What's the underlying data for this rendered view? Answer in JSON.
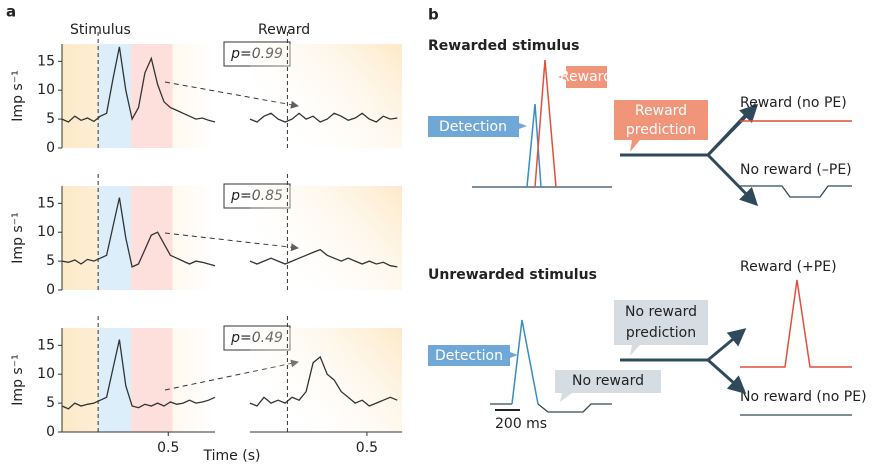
{
  "panel_a": {
    "label": "a"
  },
  "chart_data": [
    {
      "type": "line",
      "title": "Stimulus",
      "ylabel": "Imp s⁻¹",
      "annotation": "p=0.99",
      "event_x": 0.17,
      "regions": [
        {
          "start": 0.17,
          "end": 0.325,
          "color": "#dceefa"
        },
        {
          "start": 0.325,
          "end": 0.52,
          "color": "#fde0dc"
        }
      ],
      "x": [
        0,
        0.03,
        0.06,
        0.09,
        0.12,
        0.15,
        0.18,
        0.21,
        0.24,
        0.27,
        0.3,
        0.33,
        0.36,
        0.39,
        0.42,
        0.45,
        0.48,
        0.51,
        0.54,
        0.57,
        0.6,
        0.63,
        0.66,
        0.69,
        0.72
      ],
      "values": [
        5,
        4.5,
        5.5,
        4.8,
        5.2,
        4.6,
        5.5,
        6,
        12,
        17.5,
        10,
        5,
        7,
        13,
        15.5,
        11,
        8,
        7,
        6.5,
        6,
        5.5,
        5,
        5.2,
        4.8,
        4.5
      ],
      "color": "#333333",
      "xlim": [
        0,
        0.72
      ],
      "ylim": [
        0,
        18
      ],
      "yticks": [
        0,
        5,
        10,
        15
      ]
    },
    {
      "type": "line",
      "title": "Reward",
      "event_x": 0.16,
      "x": [
        0,
        0.03,
        0.06,
        0.09,
        0.12,
        0.15,
        0.18,
        0.21,
        0.24,
        0.27,
        0.3,
        0.33,
        0.36,
        0.39,
        0.42,
        0.45,
        0.48,
        0.51,
        0.54,
        0.57,
        0.6,
        0.63
      ],
      "values": [
        5,
        4.5,
        5.5,
        6,
        5,
        4.5,
        5,
        6,
        5,
        5.5,
        4.5,
        5,
        6,
        5.5,
        4.8,
        5.2,
        6,
        5,
        4.5,
        5.5,
        5,
        5.2
      ],
      "color": "#333333",
      "xlim": [
        0,
        0.65
      ],
      "ylim": [
        0,
        18
      ]
    },
    {
      "type": "line",
      "ylabel": "Imp s⁻¹",
      "annotation": "p=0.85",
      "event_x": 0.17,
      "regions": [
        {
          "start": 0.17,
          "end": 0.325,
          "color": "#dceefa"
        },
        {
          "start": 0.325,
          "end": 0.52,
          "color": "#fde0dc"
        }
      ],
      "x": [
        0,
        0.03,
        0.06,
        0.09,
        0.12,
        0.15,
        0.18,
        0.21,
        0.24,
        0.27,
        0.3,
        0.33,
        0.36,
        0.39,
        0.42,
        0.45,
        0.48,
        0.51,
        0.54,
        0.57,
        0.6,
        0.63,
        0.66,
        0.69,
        0.72
      ],
      "values": [
        5,
        4.8,
        5.2,
        4.5,
        5.3,
        5,
        5.5,
        6,
        11,
        16,
        9,
        4,
        4.5,
        7,
        9.5,
        10,
        8,
        6,
        5.5,
        5,
        4.5,
        5,
        4.8,
        4.5,
        4.2
      ],
      "color": "#333333",
      "xlim": [
        0,
        0.72
      ],
      "ylim": [
        0,
        18
      ],
      "yticks": [
        0,
        5,
        10,
        15
      ]
    },
    {
      "type": "line",
      "event_x": 0.16,
      "x": [
        0,
        0.03,
        0.06,
        0.09,
        0.12,
        0.15,
        0.18,
        0.21,
        0.24,
        0.27,
        0.3,
        0.33,
        0.36,
        0.39,
        0.42,
        0.45,
        0.48,
        0.51,
        0.54,
        0.57,
        0.6,
        0.63
      ],
      "values": [
        5,
        4.5,
        5,
        5.5,
        5,
        4.5,
        5,
        5.5,
        6,
        6.5,
        7,
        6,
        5.5,
        5,
        5.5,
        5,
        4.5,
        5,
        4.5,
        4.8,
        4.2,
        4
      ],
      "color": "#333333",
      "xlim": [
        0,
        0.65
      ],
      "ylim": [
        0,
        18
      ]
    },
    {
      "type": "line",
      "ylabel": "Imp s⁻¹",
      "annotation": "p=0.49",
      "xlabel": "Time (s)",
      "event_x": 0.17,
      "regions": [
        {
          "start": 0.17,
          "end": 0.325,
          "color": "#dceefa"
        },
        {
          "start": 0.325,
          "end": 0.52,
          "color": "#fde0dc"
        }
      ],
      "x": [
        0,
        0.03,
        0.06,
        0.09,
        0.12,
        0.15,
        0.18,
        0.21,
        0.24,
        0.27,
        0.3,
        0.33,
        0.36,
        0.39,
        0.42,
        0.45,
        0.48,
        0.51,
        0.54,
        0.57,
        0.6,
        0.63,
        0.66,
        0.69,
        0.72
      ],
      "values": [
        4.5,
        4,
        5,
        4.5,
        4.8,
        5,
        5.5,
        6,
        11,
        16,
        8,
        4.5,
        4.2,
        4.8,
        4.5,
        5,
        4.5,
        5.2,
        4.8,
        5,
        5.5,
        5,
        5.2,
        5.5,
        6
      ],
      "color": "#333333",
      "xlim": [
        0,
        0.72
      ],
      "ylim": [
        0,
        18
      ],
      "yticks": [
        0,
        5,
        10,
        15
      ],
      "xticks": [
        0.5
      ]
    },
    {
      "type": "line",
      "event_x": 0.16,
      "x": [
        0,
        0.03,
        0.06,
        0.09,
        0.12,
        0.15,
        0.18,
        0.21,
        0.24,
        0.27,
        0.3,
        0.33,
        0.36,
        0.39,
        0.42,
        0.45,
        0.48,
        0.51,
        0.54,
        0.57,
        0.6,
        0.63
      ],
      "values": [
        5,
        4.5,
        6,
        5,
        5.5,
        5,
        6,
        5.5,
        7,
        12,
        13,
        10,
        9,
        7,
        6,
        5,
        5.5,
        4.5,
        5,
        5.5,
        6,
        5.5
      ],
      "color": "#333333",
      "xlim": [
        0,
        0.65
      ],
      "ylim": [
        0,
        18
      ],
      "xticks": [
        0.5
      ]
    }
  ],
  "panel_b": {
    "label": "b",
    "rewarded": {
      "title": "Rewarded stimulus",
      "reward": "Reward",
      "detection": "Detection",
      "prediction": [
        "Reward",
        "prediction"
      ],
      "outcome_reward": "Reward (no PE)",
      "outcome_no_reward": "No reward (–PE)"
    },
    "unrewarded": {
      "title": "Unrewarded stimulus",
      "detection": "Detection",
      "no_reward": "No reward",
      "prediction": [
        "No reward",
        "prediction"
      ],
      "outcome_reward": "Reward (+PE)",
      "outcome_no_reward": "No reward (no PE)",
      "scale": "200 ms"
    }
  }
}
